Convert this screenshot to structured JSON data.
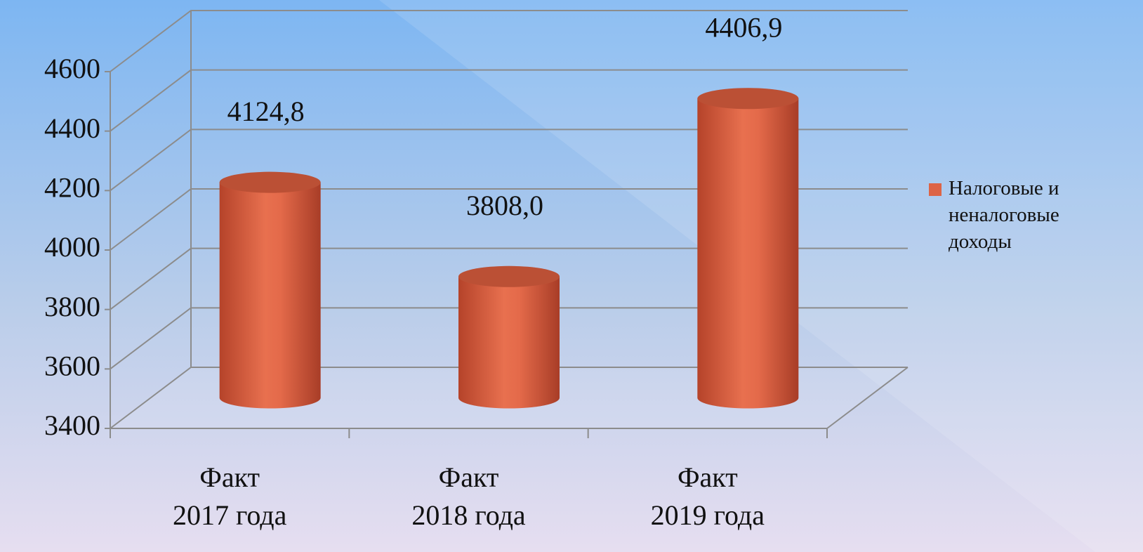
{
  "chart_data": {
    "type": "bar3d",
    "categories": [
      "Факт 2017 года",
      "Факт 2018 года",
      "Факт 2019 года"
    ],
    "series": [
      {
        "name": "Налоговые и неналоговые доходы",
        "color": "#dd6446",
        "values": [
          4124.8,
          3808.0,
          4406.9
        ],
        "value_labels": [
          "4124,8",
          "3808,0",
          "4406,9"
        ]
      }
    ],
    "ylim": [
      3400,
      4600
    ],
    "yticks": [
      3400,
      3600,
      3800,
      4000,
      4200,
      4400,
      4600
    ],
    "grid": true,
    "legend": "right"
  }
}
